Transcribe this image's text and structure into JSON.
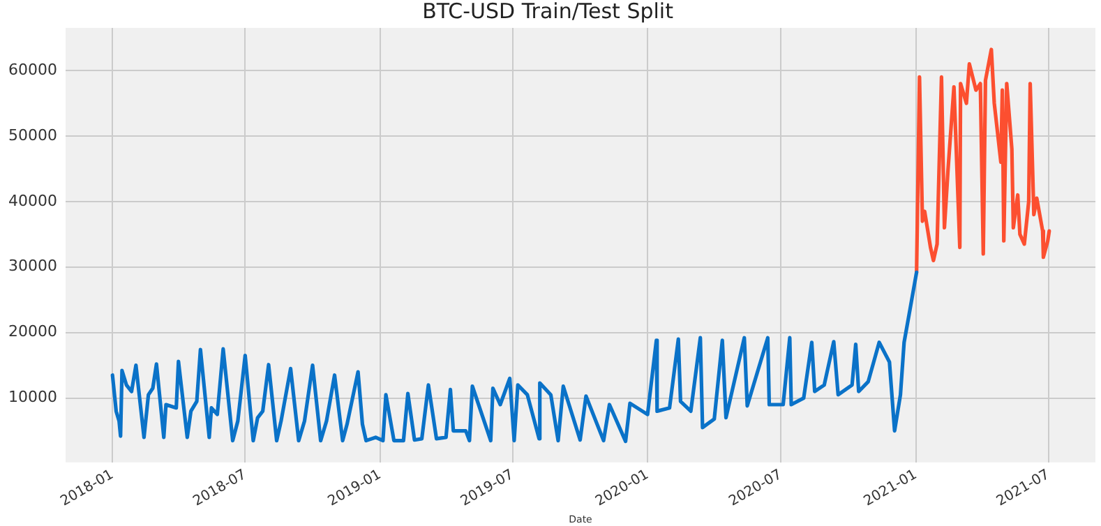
{
  "chart_data": {
    "type": "line",
    "title": "BTC-USD Train/Test Split",
    "xlabel": "Date",
    "xlim": [
      "2017-10-29",
      "2021-09-03"
    ],
    "ylim": [
      200,
      66500
    ],
    "xticks": [
      {
        "value": "2018-01-01",
        "label": "2018-01"
      },
      {
        "value": "2018-07-01",
        "label": "2018-07"
      },
      {
        "value": "2019-01-01",
        "label": "2019-01"
      },
      {
        "value": "2019-07-01",
        "label": "2019-07"
      },
      {
        "value": "2020-01-01",
        "label": "2020-01"
      },
      {
        "value": "2020-07-01",
        "label": "2020-07"
      },
      {
        "value": "2021-01-01",
        "label": "2021-01"
      },
      {
        "value": "2021-07-01",
        "label": "2021-07"
      }
    ],
    "yticks": [
      10000,
      20000,
      30000,
      40000,
      50000,
      60000
    ],
    "grid": true,
    "legend": false,
    "marker": "none",
    "line_style": "solid",
    "series": [
      {
        "color": "#0a72c8",
        "x": [
          "2018-01-01",
          "2018-01-06",
          "2018-01-10",
          "2018-01-12",
          "2018-01-14",
          "2018-01-20",
          "2018-01-27",
          "2018-02-02",
          "2018-02-13",
          "2018-02-19",
          "2018-02-25",
          "2018-03-02",
          "2018-03-12",
          "2018-03-15",
          "2018-03-29",
          "2018-04-01",
          "2018-04-13",
          "2018-04-18",
          "2018-04-26",
          "2018-05-01",
          "2018-05-13",
          "2018-05-16",
          "2018-05-24",
          "2018-06-01",
          "2018-06-14",
          "2018-06-21",
          "2018-07-01",
          "2018-07-12",
          "2018-07-18",
          "2018-07-25",
          "2018-08-02",
          "2018-08-13",
          "2018-08-19",
          "2018-09-01",
          "2018-09-12",
          "2018-09-20",
          "2018-10-01",
          "2018-10-12",
          "2018-10-20",
          "2018-10-31",
          "2018-11-11",
          "2018-11-17",
          "2018-12-02",
          "2018-12-08",
          "2018-12-13",
          "2018-12-26",
          "2019-01-05",
          "2019-01-09",
          "2019-01-20",
          "2019-02-02",
          "2019-02-08",
          "2019-02-17",
          "2019-02-27",
          "2019-03-08",
          "2019-03-19",
          "2019-04-01",
          "2019-04-07",
          "2019-04-11",
          "2019-04-28",
          "2019-05-03",
          "2019-05-07",
          "2019-06-01",
          "2019-06-04",
          "2019-06-14",
          "2019-06-27",
          "2019-07-03",
          "2019-07-08",
          "2019-07-21",
          "2019-08-06",
          "2019-08-07",
          "2019-08-22",
          "2019-09-01",
          "2019-09-08",
          "2019-10-01",
          "2019-10-09",
          "2019-11-02",
          "2019-11-10",
          "2019-12-02",
          "2019-12-08",
          "2020-01-01",
          "2020-01-13",
          "2020-01-14",
          "2020-01-31",
          "2020-02-12",
          "2020-02-15",
          "2020-02-29",
          "2020-03-13",
          "2020-03-16",
          "2020-04-01",
          "2020-04-12",
          "2020-04-17",
          "2020-05-12",
          "2020-05-16",
          "2020-06-13",
          "2020-06-15",
          "2020-07-04",
          "2020-07-13",
          "2020-07-15",
          "2020-08-01",
          "2020-08-12",
          "2020-08-16",
          "2020-08-29",
          "2020-09-11",
          "2020-09-17",
          "2020-10-06",
          "2020-10-11",
          "2020-10-15",
          "2020-10-28",
          "2020-11-12",
          "2020-11-26",
          "2020-12-03",
          "2020-12-11",
          "2020-12-16",
          "2020-12-24",
          "2021-01-02"
        ],
        "values": [
          13500,
          8000,
          6500,
          4200,
          14200,
          12000,
          11000,
          15000,
          4000,
          10500,
          11500,
          15200,
          4000,
          9000,
          8500,
          15600,
          4000,
          8000,
          9500,
          17400,
          4000,
          8500,
          7500,
          17500,
          3500,
          6500,
          16500,
          3500,
          7000,
          8000,
          15100,
          3500,
          6500,
          14500,
          3500,
          6500,
          15000,
          3500,
          6500,
          13500,
          3500,
          6000,
          14000,
          6000,
          3500,
          4000,
          3500,
          10500,
          3500,
          3500,
          10700,
          3600,
          3800,
          12000,
          3800,
          4000,
          11300,
          5000,
          5000,
          3500,
          11800,
          3500,
          11500,
          9000,
          13000,
          3500,
          12000,
          10500,
          3800,
          12300,
          10500,
          3500,
          11800,
          3600,
          10300,
          3500,
          9000,
          3400,
          9200,
          7500,
          18800,
          8000,
          8500,
          19000,
          9500,
          8000,
          19200,
          5500,
          6800,
          18800,
          7000,
          19200,
          8800,
          19200,
          9000,
          9000,
          19200,
          9000,
          10000,
          18500,
          11000,
          12000,
          18600,
          10500,
          12000,
          18200,
          11000,
          12500,
          18500,
          15500,
          5000,
          10500,
          18500,
          23500,
          29200
        ]
      },
      {
        "color": "#fc4f30",
        "x": [
          "2021-01-02",
          "2021-01-06",
          "2021-01-10",
          "2021-01-13",
          "2021-01-21",
          "2021-01-25",
          "2021-01-30",
          "2021-02-05",
          "2021-02-09",
          "2021-02-14",
          "2021-02-22",
          "2021-03-02",
          "2021-03-03",
          "2021-03-11",
          "2021-03-15",
          "2021-03-24",
          "2021-03-30",
          "2021-04-03",
          "2021-04-06",
          "2021-04-14",
          "2021-04-18",
          "2021-04-27",
          "2021-04-29",
          "2021-05-01",
          "2021-05-05",
          "2021-05-12",
          "2021-05-14",
          "2021-05-20",
          "2021-05-23",
          "2021-05-29",
          "2021-06-04",
          "2021-06-06",
          "2021-06-11",
          "2021-06-15",
          "2021-06-23",
          "2021-06-24",
          "2021-06-30",
          "2021-07-02"
        ],
        "values": [
          29200,
          59000,
          37000,
          38500,
          33000,
          31000,
          33500,
          59000,
          36000,
          45000,
          57500,
          33000,
          58000,
          55000,
          61000,
          57000,
          58000,
          32000,
          58500,
          63200,
          55000,
          46000,
          57000,
          34000,
          58000,
          48000,
          36000,
          41000,
          35000,
          33500,
          40000,
          58000,
          38000,
          40500,
          35500,
          31500,
          34000,
          35500
        ]
      }
    ]
  }
}
